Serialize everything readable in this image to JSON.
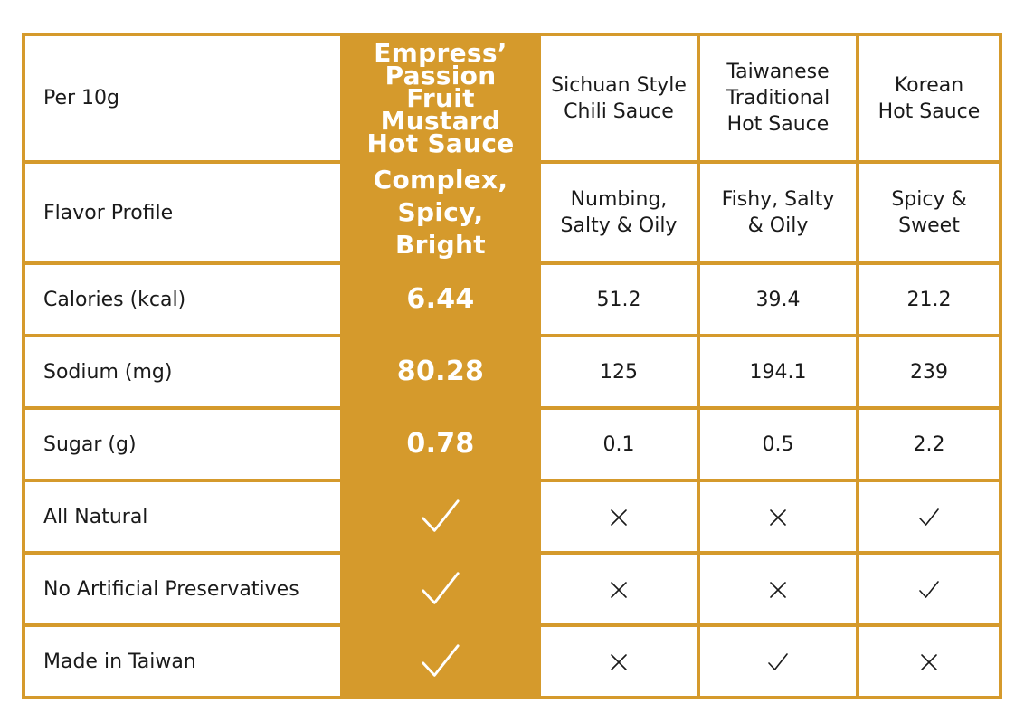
{
  "header": {
    "label": "Per 10g",
    "columns": [
      "Empress’\nPassion Fruit\nMustard\nHot Sauce",
      "Sichuan Style\nChili Sauce",
      "Taiwanese\nTraditional\nHot Sauce",
      "Korean\nHot Sauce"
    ]
  },
  "rows": [
    {
      "label": "Flavor Profile",
      "cells": [
        "Complex,\nSpicy, Bright",
        "Numbing,\nSalty & Oily",
        "Fishy, Salty\n& Oily",
        "Spicy &\nSweet"
      ]
    },
    {
      "label": "Calories (kcal)",
      "cells": [
        "6.44",
        "51.2",
        "39.4",
        "21.2"
      ]
    },
    {
      "label": "Sodium (mg)",
      "cells": [
        "80.28",
        "125",
        "194.1",
        "239"
      ]
    },
    {
      "label": "Sugar (g)",
      "cells": [
        "0.78",
        "0.1",
        "0.5",
        "2.2"
      ]
    },
    {
      "label": "All Natural",
      "cells": [
        "check-icon",
        "cross-icon",
        "cross-icon",
        "check-icon"
      ]
    },
    {
      "label": "No Artificial Preservatives",
      "cells": [
        "check-icon",
        "cross-icon",
        "cross-icon",
        "check-icon"
      ]
    },
    {
      "label": "Made in Taiwan",
      "cells": [
        "check-icon",
        "cross-icon",
        "check-icon",
        "cross-icon"
      ]
    }
  ],
  "colors": {
    "accent": "#d59a2c",
    "text": "#1a1a1a",
    "featured_text": "#ffffff"
  }
}
